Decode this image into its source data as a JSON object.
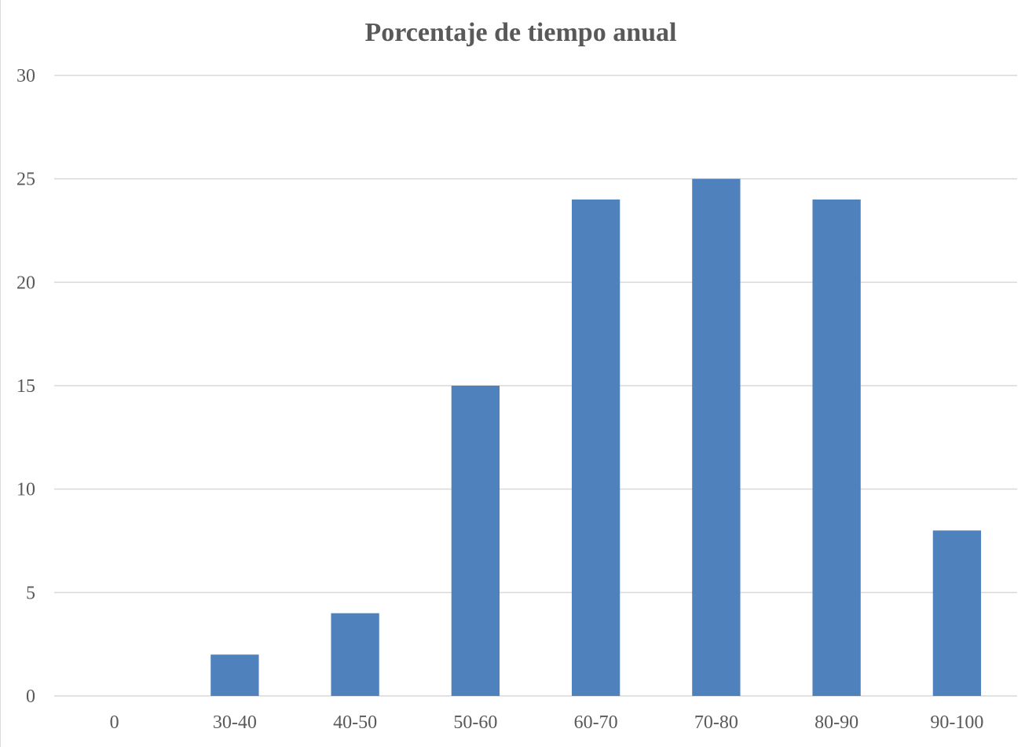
{
  "chart_data": {
    "type": "bar",
    "title": "Porcentaje de tiempo anual",
    "xlabel": "",
    "ylabel": "",
    "categories": [
      "0",
      "30-40",
      "40-50",
      "50-60",
      "60-70",
      "70-80",
      "80-90",
      "90-100"
    ],
    "values": [
      0,
      2,
      4,
      15,
      24,
      25,
      24,
      8
    ],
    "ylim": [
      0,
      30
    ],
    "yticks": [
      "0",
      "5",
      "10",
      "15",
      "20",
      "25",
      "30"
    ],
    "grid": true,
    "legend": "none",
    "bar_color": "#4f81bd",
    "grid_color": "#d9d9d9",
    "text_color": "#595959"
  }
}
